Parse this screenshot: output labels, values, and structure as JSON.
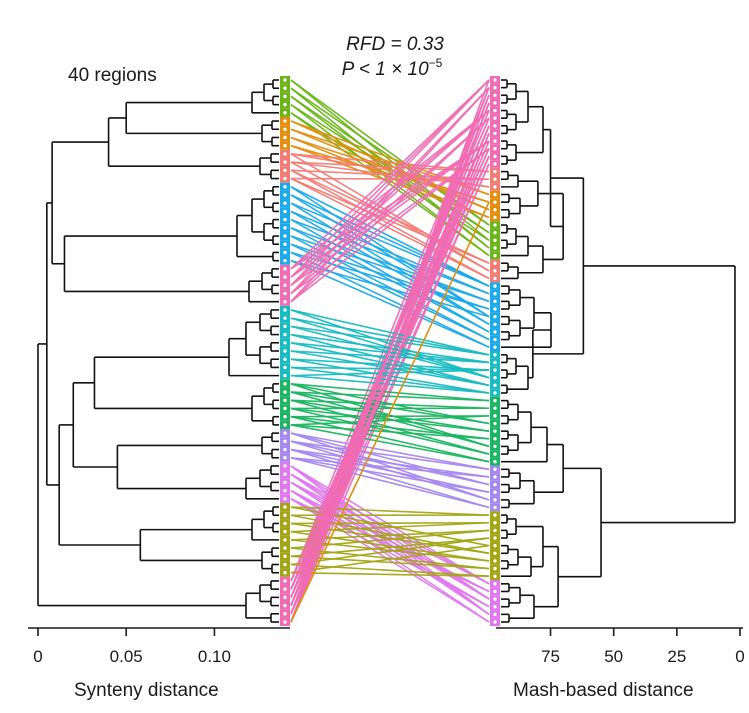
{
  "chart_data": {
    "type": "tanglegram",
    "annotation": {
      "regions": "40 regions",
      "rfd": "RFD = 0.33",
      "p_main": "P < 1 × 10",
      "p_exp": "−5"
    },
    "left_axis": {
      "label": "Synteny distance",
      "range": [
        0,
        0.14
      ],
      "ticks": [
        {
          "value": 0,
          "label": "0"
        },
        {
          "value": 0.05,
          "label": "0.05"
        },
        {
          "value": 0.1,
          "label": "0.10"
        }
      ]
    },
    "right_axis": {
      "label": "Mash-based distance",
      "range": [
        0,
        95
      ],
      "ticks": [
        {
          "value": 75,
          "label": "75"
        },
        {
          "value": 50,
          "label": "50"
        },
        {
          "value": 25,
          "label": "25"
        },
        {
          "value": 0,
          "label": "0"
        }
      ]
    },
    "region_colors": {
      "green": "#6ab619",
      "orange": "#e28e0c",
      "salmon": "#f27b74",
      "blue": "#1aa9e9",
      "pink": "#f06bb3",
      "teal": "#17bcc1",
      "darkgreen": "#1bb562",
      "purple": "#a587f0",
      "violet": "#df78ee",
      "olive": "#a3a514"
    },
    "left_order": [
      {
        "color": "green",
        "count": 5
      },
      {
        "color": "orange",
        "count": 4
      },
      {
        "color": "salmon",
        "count": 4
      },
      {
        "color": "blue",
        "count": 10
      },
      {
        "color": "pink",
        "count": 5
      },
      {
        "color": "teal",
        "count": 9
      },
      {
        "color": "darkgreen",
        "count": 6
      },
      {
        "color": "purple",
        "count": 4
      },
      {
        "color": "violet",
        "count": 5
      },
      {
        "color": "olive",
        "count": 5
      },
      {
        "color": "olive",
        "count": 4
      },
      {
        "color": "pink",
        "count": 6
      }
    ],
    "right_order": [
      {
        "color": "pink",
        "count": 12
      },
      {
        "color": "salmon",
        "count": 3
      },
      {
        "color": "orange",
        "count": 4
      },
      {
        "color": "green",
        "count": 5
      },
      {
        "color": "salmon",
        "count": 3
      },
      {
        "color": "blue",
        "count": 9
      },
      {
        "color": "teal",
        "count": 6
      },
      {
        "color": "darkgreen",
        "count": 9
      },
      {
        "color": "purple",
        "count": 6
      },
      {
        "color": "olive",
        "count": 4
      },
      {
        "color": "olive",
        "count": 5
      },
      {
        "color": "violet",
        "count": 6
      }
    ],
    "left_clades": [
      {
        "name": "A",
        "height": 0.137,
        "children": [
          "A1",
          "A2"
        ]
      },
      {
        "name": "A1",
        "height": 0.125,
        "children": [
          "A1a",
          "A1b"
        ]
      },
      {
        "name": "A1a",
        "height": 0.115,
        "children": [
          "A1a1",
          "A1a2"
        ]
      },
      {
        "name": "A1a1",
        "height": 0.09,
        "children": [
          "green",
          "orange"
        ]
      },
      {
        "name": "A1a2",
        "height": 0.06,
        "children": [
          "salmon",
          "blue"
        ]
      },
      {
        "name": "A1b",
        "height": 0.1,
        "children": [
          "pink",
          "teal"
        ]
      },
      {
        "name": "A2",
        "height": 0.11,
        "children": [
          "A2a",
          "pink2"
        ]
      },
      {
        "name": "A2a",
        "height": 0.085,
        "children": [
          "darkgreen",
          "A2b"
        ]
      },
      {
        "name": "A2b",
        "height": 0.06,
        "children": [
          "purple",
          "violet",
          "olive"
        ]
      }
    ],
    "right_clades": [
      {
        "name": "root",
        "height": 95,
        "children": [
          "R1",
          "R2"
        ]
      },
      {
        "name": "R1",
        "height": 58,
        "children": [
          "pinkR",
          "R1b"
        ]
      },
      {
        "name": "R1b",
        "height": 35,
        "children": [
          "orange",
          "green",
          "salmon",
          "blue"
        ]
      },
      {
        "name": "R2",
        "height": 40,
        "children": [
          "tealdarkgreen",
          "purpleolive"
        ]
      }
    ]
  }
}
